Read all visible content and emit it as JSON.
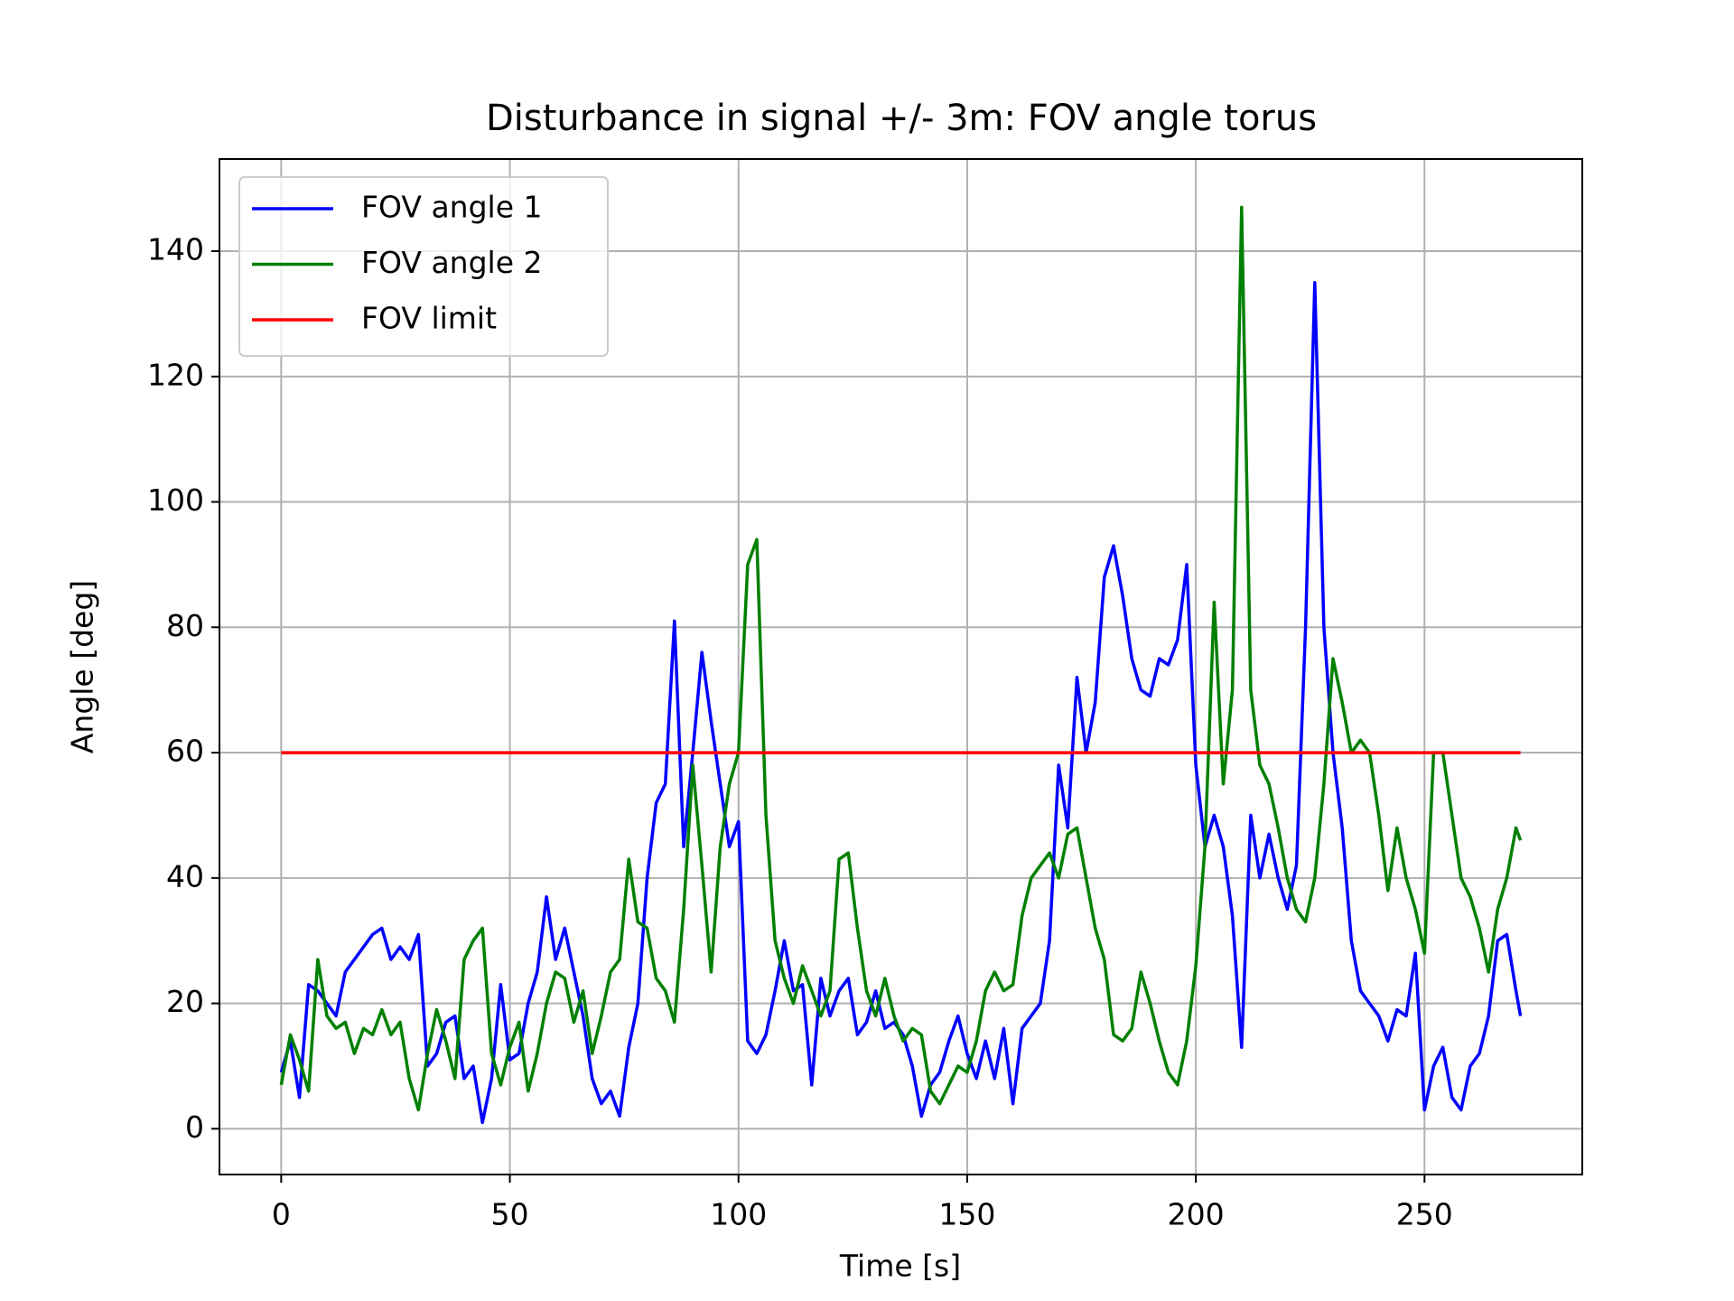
{
  "chart_data": {
    "type": "line",
    "title": "Disturbance in signal +/- 3m: FOV angle torus",
    "x_label": "Time [s]",
    "y_label": "Angle [deg]",
    "x": [
      0,
      2,
      4,
      6,
      8,
      10,
      12,
      14,
      16,
      18,
      20,
      22,
      24,
      26,
      28,
      30,
      32,
      34,
      36,
      38,
      40,
      42,
      44,
      46,
      48,
      50,
      52,
      54,
      56,
      58,
      60,
      62,
      64,
      66,
      68,
      70,
      72,
      74,
      76,
      78,
      80,
      82,
      84,
      86,
      88,
      90,
      92,
      94,
      96,
      98,
      100,
      102,
      104,
      106,
      108,
      110,
      112,
      114,
      116,
      118,
      120,
      122,
      124,
      126,
      128,
      130,
      132,
      134,
      136,
      138,
      140,
      142,
      144,
      146,
      148,
      150,
      152,
      154,
      156,
      158,
      160,
      162,
      164,
      166,
      168,
      170,
      172,
      174,
      176,
      178,
      180,
      182,
      184,
      186,
      188,
      190,
      192,
      194,
      196,
      198,
      200,
      202,
      204,
      206,
      208,
      210,
      212,
      214,
      216,
      218,
      220,
      222,
      224,
      226,
      228,
      230,
      232,
      234,
      236,
      238,
      240,
      242,
      244,
      246,
      248,
      250,
      252,
      254,
      256,
      258,
      260,
      262,
      264,
      266,
      268,
      270,
      271
    ],
    "series": [
      {
        "name": "FOV angle 1",
        "color": "#0000ff",
        "values": [
          9,
          14,
          5,
          23,
          22,
          20,
          18,
          25,
          27,
          29,
          31,
          32,
          27,
          29,
          27,
          31,
          10,
          12,
          17,
          18,
          8,
          10,
          1,
          8,
          23,
          11,
          12,
          20,
          25,
          37,
          27,
          32,
          25,
          18,
          8,
          4,
          6,
          2,
          13,
          20,
          40,
          52,
          55,
          81,
          45,
          60,
          76,
          65,
          55,
          45,
          49,
          14,
          12,
          15,
          22,
          30,
          22,
          23,
          7,
          24,
          18,
          22,
          24,
          15,
          17,
          22,
          16,
          17,
          15,
          10,
          2,
          7,
          9,
          14,
          18,
          12,
          8,
          14,
          8,
          16,
          4,
          16,
          18,
          20,
          30,
          58,
          48,
          72,
          60,
          68,
          88,
          93,
          85,
          75,
          70,
          69,
          75,
          74,
          78,
          90,
          58,
          45,
          50,
          45,
          34,
          13,
          50,
          40,
          47,
          40,
          35,
          42,
          80,
          135,
          80,
          60,
          48,
          30,
          22,
          20,
          18,
          14,
          19,
          18,
          28,
          3,
          10,
          13,
          5,
          3,
          10,
          12,
          18,
          30,
          31,
          22,
          18
        ]
      },
      {
        "name": "FOV angle 2",
        "color": "#008000",
        "values": [
          7,
          15,
          11,
          6,
          27,
          18,
          16,
          17,
          12,
          16,
          15,
          19,
          15,
          17,
          8,
          3,
          12,
          19,
          14,
          8,
          27,
          30,
          32,
          12,
          7,
          13,
          17,
          6,
          12,
          20,
          25,
          24,
          17,
          22,
          12,
          18,
          25,
          27,
          43,
          33,
          32,
          24,
          22,
          17,
          35,
          58,
          42,
          25,
          45,
          55,
          60,
          90,
          94,
          50,
          30,
          24,
          20,
          26,
          22,
          18,
          22,
          43,
          44,
          32,
          22,
          18,
          24,
          18,
          14,
          16,
          15,
          6,
          4,
          7,
          10,
          9,
          14,
          22,
          25,
          22,
          23,
          34,
          40,
          42,
          44,
          40,
          47,
          48,
          40,
          32,
          27,
          15,
          14,
          16,
          25,
          20,
          14,
          9,
          7,
          14,
          26,
          45,
          84,
          55,
          70,
          147,
          70,
          58,
          55,
          48,
          40,
          35,
          33,
          40,
          55,
          75,
          68,
          60,
          62,
          60,
          50,
          38,
          48,
          40,
          35,
          28,
          60,
          60,
          50,
          40,
          37,
          32,
          25,
          35,
          40,
          48,
          46
        ]
      },
      {
        "name": "FOV limit",
        "color": "#ff0000",
        "x": [
          0,
          271
        ],
        "values": [
          60,
          60
        ]
      }
    ],
    "xlim": [
      -13.5,
      284.5
    ],
    "ylim": [
      -7.3,
      154.7
    ],
    "xticks": [
      0,
      50,
      100,
      150,
      200,
      250
    ],
    "yticks": [
      0,
      20,
      40,
      60,
      80,
      100,
      120,
      140
    ],
    "grid": true,
    "legend": "upper left"
  }
}
